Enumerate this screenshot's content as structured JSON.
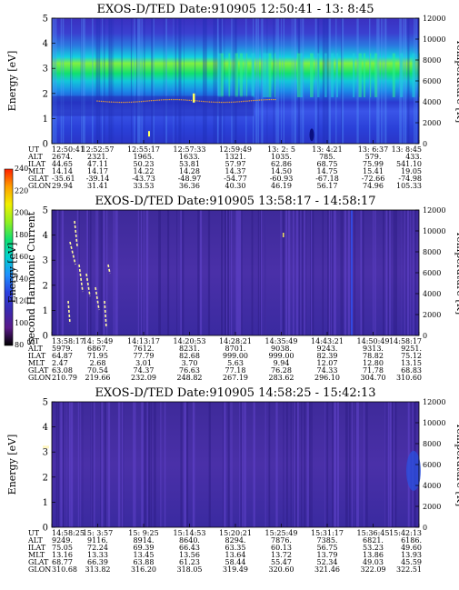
{
  "chart_data": [
    {
      "type": "heatmap",
      "title": "EXOS-D/TED",
      "date_label": "Date:910905",
      "time_range": "12:50:41 - 13: 8:45",
      "ylabel": "Energy [eV]",
      "ylabel_right": "Temperature [K]",
      "ylim": [
        0,
        5
      ],
      "yticks": [
        "0",
        "1",
        "2",
        "3",
        "4",
        "5"
      ],
      "ylim_right": [
        0,
        12000
      ],
      "yticks_right": [
        "0",
        "2000",
        "4000",
        "6000",
        "8000",
        "10000",
        "12000"
      ],
      "table": {
        "rows": [
          "UT",
          "ALT",
          "ILAT",
          "MLT",
          "GLAT",
          "GLON"
        ],
        "columns": [
          [
            "12:50:41",
            "2674.",
            "44.65",
            "14.14",
            "-35.61",
            "29.94"
          ],
          [
            "12:52:57",
            "2321.",
            "47.11",
            "14.17",
            "-39.14",
            "31.41"
          ],
          [
            "12:55:17",
            "1965.",
            "50.23",
            "14.22",
            "-43.73",
            "33.53"
          ],
          [
            "12:57:33",
            "1633.",
            "53.81",
            "14.28",
            "-48.97",
            "36.36"
          ],
          [
            "12:59:49",
            "1321.",
            "57.97",
            "14.37",
            "-54.77",
            "40.30"
          ],
          [
            "13: 2: 5",
            "1035.",
            "62.86",
            "14.50",
            "-60.93",
            "46.19"
          ],
          [
            "13: 4:21",
            "785.",
            "68.75",
            "14.75",
            "-67.18",
            "56.17"
          ],
          [
            "13: 6:37",
            "579.",
            "75.99",
            "15.41",
            "-72.66",
            "74.96"
          ],
          [
            "13: 8:45",
            "433.",
            "541.10",
            "19.05",
            "-74.98",
            "105.33"
          ]
        ]
      }
    },
    {
      "type": "heatmap",
      "title": "EXOS-D/TED",
      "date_label": "Date:910905",
      "time_range": "13:58:17 - 14:58:17",
      "ylabel": "Energy [eV]",
      "ylabel_right": "Temperature [K]",
      "ylim": [
        0,
        5
      ],
      "yticks": [
        "0",
        "1",
        "2",
        "3",
        "4",
        "5"
      ],
      "ylim_right": [
        0,
        12000
      ],
      "yticks_right": [
        "0",
        "2000",
        "4000",
        "6000",
        "8000",
        "10000",
        "12000"
      ],
      "table": {
        "rows": [
          "UT",
          "ALT",
          "ILAT",
          "MLT",
          "GLAT",
          "GLON"
        ],
        "columns": [
          [
            "13:58:17",
            "5979.",
            "64.87",
            "2.47",
            "63.08",
            "210.79"
          ],
          [
            "14: 5:49",
            "6867.",
            "71.95",
            "2.68",
            "70.54",
            "219.66"
          ],
          [
            "14:13:17",
            "7612.",
            "77.79",
            "3.01",
            "74.37",
            "232.09"
          ],
          [
            "14:20:53",
            "8231.",
            "82.68",
            "3.70",
            "76.63",
            "248.82"
          ],
          [
            "14:28:21",
            "8701.",
            "999.00",
            "5.63",
            "77.18",
            "267.19"
          ],
          [
            "14:35:49",
            "9038.",
            "999.00",
            "9.94",
            "76.28",
            "283.62"
          ],
          [
            "14:43:21",
            "9243.",
            "82.39",
            "12.07",
            "74.33",
            "296.10"
          ],
          [
            "14:50:49",
            "9313.",
            "78.82",
            "12.80",
            "71.78",
            "304.70"
          ],
          [
            "14:58:17",
            "9251.",
            "75.12",
            "13.15",
            "68.83",
            "310.60"
          ]
        ]
      }
    },
    {
      "type": "heatmap",
      "title": "EXOS-D/TED",
      "date_label": "Date:910905",
      "time_range": "14:58:25 - 15:42:13",
      "ylabel": "Energy [eV]",
      "ylabel_right": "Temperature [K]",
      "ylim": [
        0,
        5
      ],
      "yticks": [
        "0",
        "1",
        "2",
        "3",
        "4",
        "5"
      ],
      "ylim_right": [
        0,
        12000
      ],
      "yticks_right": [
        "0",
        "2000",
        "4000",
        "6000",
        "8000",
        "10000",
        "12000"
      ],
      "table": {
        "rows": [
          "UT",
          "ALT",
          "ILAT",
          "MLT",
          "GLAT",
          "GLON"
        ],
        "columns": [
          [
            "14:58:25",
            "9249.",
            "75.05",
            "13.16",
            "68.77",
            "310.68"
          ],
          [
            "15: 3:57",
            "9116.",
            "72.24",
            "13.33",
            "66.39",
            "313.82"
          ],
          [
            "15: 9:25",
            "8914.",
            "69.39",
            "13.45",
            "63.88",
            "316.20"
          ],
          [
            "15:14:53",
            "8640.",
            "66.43",
            "13.56",
            "61.23",
            "318.05"
          ],
          [
            "15:20:21",
            "8294.",
            "63.35",
            "13.64",
            "58.44",
            "319.49"
          ],
          [
            "15:25:49",
            "7876.",
            "60.13",
            "13.72",
            "55.47",
            "320.60"
          ],
          [
            "15:31:17",
            "7385.",
            "56.75",
            "13.79",
            "52.34",
            "321.46"
          ],
          [
            "15:36:45",
            "6821.",
            "53.23",
            "13.86",
            "49.03",
            "322.09"
          ],
          [
            "15:42:13",
            "6186.",
            "49.60",
            "13.93",
            "45.59",
            "322.51"
          ]
        ]
      }
    }
  ],
  "colorbar": {
    "label": "Second Harmonic Current",
    "ticks": [
      "80",
      "100",
      "120",
      "140",
      "160",
      "180",
      "200",
      "220",
      "240"
    ],
    "colors": [
      "#000000",
      "#5a1a8a",
      "#3a2ab0",
      "#2a40e0",
      "#1e90ff",
      "#00d0d0",
      "#10e070",
      "#90f020",
      "#f0f000",
      "#ffa000",
      "#ff2000"
    ]
  }
}
